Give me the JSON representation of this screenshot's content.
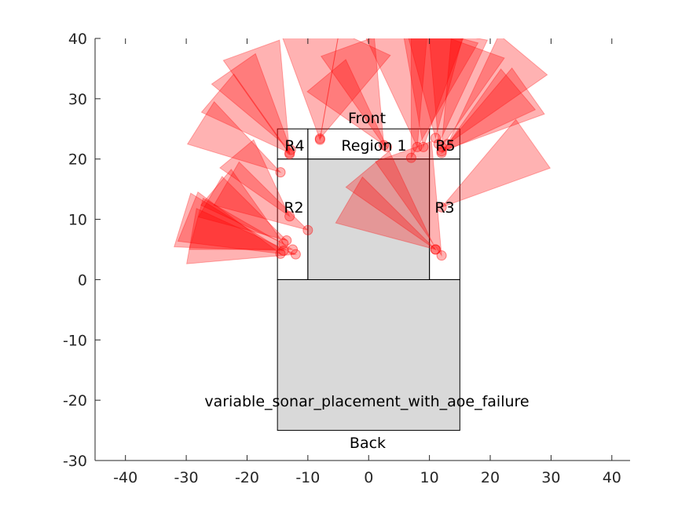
{
  "chart_data": {
    "type": "diagram",
    "xlim": [
      -45,
      43
    ],
    "ylim": [
      -30,
      40
    ],
    "xticks": [
      -40,
      -30,
      -20,
      -10,
      0,
      10,
      20,
      30,
      40
    ],
    "yticks": [
      -30,
      -20,
      -10,
      0,
      10,
      20,
      30,
      40
    ],
    "grid": false,
    "annotations": {
      "title_text": "variable_sonar_placement_with_aoe_failure",
      "front": "Front",
      "back": "Back",
      "r1": "Region 1",
      "r2": "R2",
      "r3": "R3",
      "r4": "R4",
      "r5": "R5"
    },
    "colors": {
      "region_fill": "#d9d9d9",
      "region_edge": "#000000",
      "cone_fill": "#ff0000",
      "cone_opacity": 0.3
    },
    "regions": [
      {
        "name": "back-region",
        "x": [
          -15,
          15
        ],
        "y": [
          -25,
          0
        ],
        "filled": true
      },
      {
        "name": "region-1-body",
        "x": [
          -10,
          10
        ],
        "y": [
          0,
          20
        ],
        "filled": true
      },
      {
        "name": "region-1",
        "x": [
          -10,
          10
        ],
        "y": [
          20,
          25
        ],
        "filled": false
      },
      {
        "name": "region-2",
        "x": [
          -15,
          -10
        ],
        "y": [
          0,
          20
        ],
        "filled": false
      },
      {
        "name": "region-3",
        "x": [
          10,
          15
        ],
        "y": [
          0,
          20
        ],
        "filled": false
      },
      {
        "name": "region-4",
        "x": [
          -15,
          -10
        ],
        "y": [
          20,
          25
        ],
        "filled": false
      },
      {
        "name": "region-5",
        "x": [
          10,
          15
        ],
        "y": [
          20,
          25
        ],
        "filled": false
      }
    ],
    "sensors": [
      {
        "x": -14.5,
        "y": 4.3,
        "dir": 158,
        "range": 17,
        "fov": 30
      },
      {
        "x": -14.0,
        "y": 4.8,
        "dir": 163,
        "range": 18,
        "fov": 30
      },
      {
        "x": -13.5,
        "y": 6.5,
        "dir": 150,
        "range": 15,
        "fov": 30
      },
      {
        "x": -12.5,
        "y": 5.0,
        "dir": 165,
        "range": 17,
        "fov": 30
      },
      {
        "x": -12.0,
        "y": 4.2,
        "dir": 170,
        "range": 18,
        "fov": 30
      },
      {
        "x": -14.0,
        "y": 6.0,
        "dir": 140,
        "range": 15,
        "fov": 30
      },
      {
        "x": -13.0,
        "y": 10.5,
        "dir": 130,
        "range": 14,
        "fov": 30
      },
      {
        "x": -10.0,
        "y": 8.2,
        "dir": 150,
        "range": 16,
        "fov": 30
      },
      {
        "x": -14.5,
        "y": 17.8,
        "dir": 148,
        "range": 16,
        "fov": 30
      },
      {
        "x": -13.0,
        "y": 21.0,
        "dir": 140,
        "range": 16,
        "fov": 30
      },
      {
        "x": -12.8,
        "y": 21.5,
        "dir": 125,
        "range": 17,
        "fov": 30
      },
      {
        "x": -13.0,
        "y": 20.8,
        "dir": 110,
        "range": 19,
        "fov": 30
      },
      {
        "x": -8.0,
        "y": 23.2,
        "dir": 95,
        "range": 19,
        "fov": 30
      },
      {
        "x": -8.0,
        "y": 23.4,
        "dir": 65,
        "range": 18,
        "fov": 30
      },
      {
        "x": 3.0,
        "y": 22.0,
        "dir": 130,
        "range": 16,
        "fov": 30
      },
      {
        "x": 2.5,
        "y": 22.3,
        "dir": 110,
        "range": 18,
        "fov": 30
      },
      {
        "x": 7.0,
        "y": 20.2,
        "dir": 75,
        "range": 22,
        "fov": 30
      },
      {
        "x": 8.0,
        "y": 22.0,
        "dir": 100,
        "range": 20,
        "fov": 30
      },
      {
        "x": 9.0,
        "y": 22.0,
        "dir": 85,
        "range": 20,
        "fov": 30
      },
      {
        "x": 11.0,
        "y": 23.5,
        "dir": 90,
        "range": 19,
        "fov": 30
      },
      {
        "x": 11.5,
        "y": 22.5,
        "dir": 80,
        "range": 19,
        "fov": 30
      },
      {
        "x": 12.0,
        "y": 22.0,
        "dir": 70,
        "range": 18,
        "fov": 30
      },
      {
        "x": 12.0,
        "y": 21.3,
        "dir": 35,
        "range": 18,
        "fov": 30
      },
      {
        "x": 13.0,
        "y": 22.5,
        "dir": 50,
        "range": 20,
        "fov": 30
      },
      {
        "x": 12.0,
        "y": 21.0,
        "dir": 40,
        "range": 17,
        "fov": 30
      },
      {
        "x": 11.0,
        "y": 5.0,
        "dir": 150,
        "range": 17,
        "fov": 30
      },
      {
        "x": 11.0,
        "y": 5.0,
        "dir": 130,
        "range": 18,
        "fov": 30
      },
      {
        "x": 12.0,
        "y": 4.0,
        "dir": 110,
        "range": 19,
        "fov": 30
      },
      {
        "x": 12.0,
        "y": 12.0,
        "dir": 35,
        "range": 19,
        "fov": 30
      }
    ]
  }
}
